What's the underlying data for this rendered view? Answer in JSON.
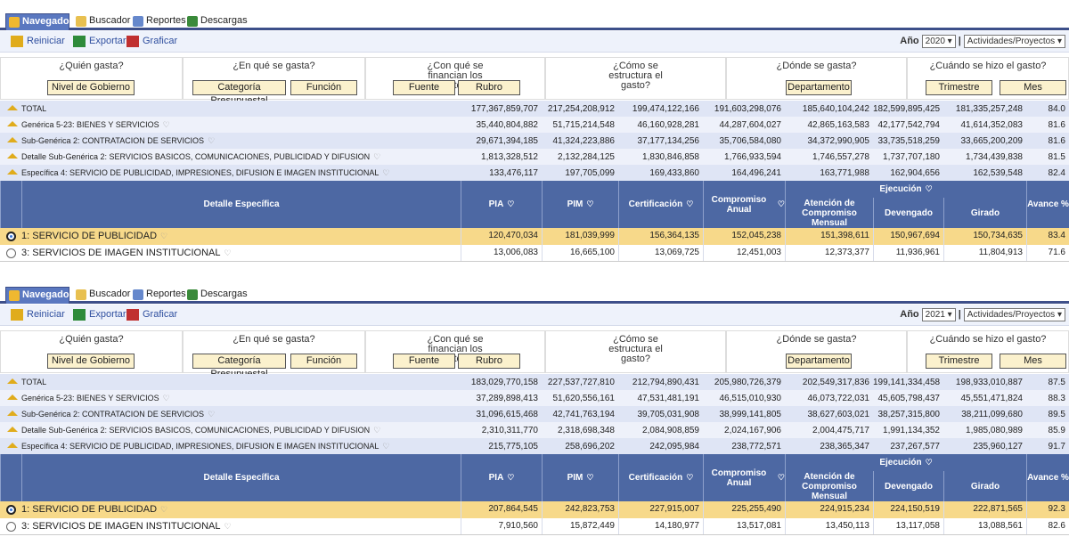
{
  "tabs": [
    {
      "label": "Navegador",
      "icon": "navigator-icon",
      "active": true
    },
    {
      "label": "Buscador",
      "icon": "search-icon"
    },
    {
      "label": "Reportes",
      "icon": "report-icon"
    },
    {
      "label": "Descargas",
      "icon": "download-icon"
    }
  ],
  "toolbar": {
    "reset": "Reiniciar",
    "export": "Exportar",
    "chart": "Graficar",
    "year_label": "Año",
    "view": "Actividades/Proyectos"
  },
  "questions": [
    {
      "title": "¿Quién gasta?",
      "buttons": [
        "Nivel de Gobierno"
      ]
    },
    {
      "title": "¿En qué se gasta?",
      "buttons": [
        "Categoría Presupuestal",
        "Función"
      ]
    },
    {
      "title": "¿Con qué se financian los gastos?",
      "buttons": [
        "Fuente",
        "Rubro"
      ]
    },
    {
      "title": "¿Cómo se estructura el gasto?",
      "buttons": []
    },
    {
      "title": "¿Dónde se gasta?",
      "buttons": [
        "Departamento"
      ]
    },
    {
      "title": "¿Cuándo se hizo el gasto?",
      "buttons": [
        "Trimestre",
        "Mes"
      ]
    }
  ],
  "columns": {
    "detail": "Detalle Específica",
    "pia": "PIA",
    "pim": "PIM",
    "cert": "Certificación",
    "comp": "Compromiso Anual",
    "ejec": "Ejecución",
    "aten": "Atención de Compromiso Mensual",
    "dev": "Devengado",
    "gir": "Girado",
    "avance": "Avance %"
  },
  "colors": {
    "header": "#4d68a3",
    "selected_row": "#f7d98a",
    "tab_active": "#5a78c0"
  },
  "panels": [
    {
      "year": "2020",
      "summary": [
        {
          "label": "TOTAL",
          "values": [
            "177,367,859,707",
            "217,254,208,912",
            "199,474,122,166",
            "191,603,298,076",
            "185,640,104,242",
            "182,599,895,425",
            "181,335,257,248",
            "84.0"
          ]
        },
        {
          "label": "Genérica 5-23: BIENES Y SERVICIOS",
          "values": [
            "35,440,804,882",
            "51,715,214,548",
            "46,160,928,281",
            "44,287,604,027",
            "42,865,163,583",
            "42,177,542,794",
            "41,614,352,083",
            "81.6"
          ]
        },
        {
          "label": "Sub-Genérica 2: CONTRATACION DE SERVICIOS",
          "values": [
            "29,671,394,185",
            "41,324,223,886",
            "37,177,134,256",
            "35,706,584,080",
            "34,372,990,905",
            "33,735,518,259",
            "33,665,200,209",
            "81.6"
          ]
        },
        {
          "label": "Detalle Sub-Genérica 2: SERVICIOS BASICOS, COMUNICACIONES, PUBLICIDAD Y DIFUSION",
          "values": [
            "1,813,328,512",
            "2,132,284,125",
            "1,830,846,858",
            "1,766,933,594",
            "1,746,557,278",
            "1,737,707,180",
            "1,734,439,838",
            "81.5"
          ]
        },
        {
          "label": "Específica 4: SERVICIO DE PUBLICIDAD, IMPRESIONES, DIFUSION E IMAGEN INSTITUCIONAL",
          "values": [
            "133,476,117",
            "197,705,099",
            "169,433,860",
            "164,496,241",
            "163,771,988",
            "162,904,656",
            "162,539,548",
            "82.4"
          ]
        }
      ],
      "rows": [
        {
          "label": "1: SERVICIO DE PUBLICIDAD",
          "selected": true,
          "values": [
            "120,470,034",
            "181,039,999",
            "156,364,135",
            "152,045,238",
            "151,398,611",
            "150,967,694",
            "150,734,635",
            "83.4"
          ]
        },
        {
          "label": "3: SERVICIOS DE IMAGEN INSTITUCIONAL",
          "selected": false,
          "values": [
            "13,006,083",
            "16,665,100",
            "13,069,725",
            "12,451,003",
            "12,373,377",
            "11,936,961",
            "11,804,913",
            "71.6"
          ]
        }
      ]
    },
    {
      "year": "2021",
      "summary": [
        {
          "label": "TOTAL",
          "values": [
            "183,029,770,158",
            "227,537,727,810",
            "212,794,890,431",
            "205,980,726,379",
            "202,549,317,836",
            "199,141,334,458",
            "198,933,010,887",
            "87.5"
          ]
        },
        {
          "label": "Genérica 5-23: BIENES Y SERVICIOS",
          "values": [
            "37,289,898,413",
            "51,620,556,161",
            "47,531,481,191",
            "46,515,010,930",
            "46,073,722,031",
            "45,605,798,437",
            "45,551,471,824",
            "88.3"
          ]
        },
        {
          "label": "Sub-Genérica 2: CONTRATACION DE SERVICIOS",
          "values": [
            "31,096,615,468",
            "42,741,763,194",
            "39,705,031,908",
            "38,999,141,805",
            "38,627,603,021",
            "38,257,315,800",
            "38,211,099,680",
            "89.5"
          ]
        },
        {
          "label": "Detalle Sub-Genérica 2: SERVICIOS BASICOS, COMUNICACIONES, PUBLICIDAD Y DIFUSION",
          "values": [
            "2,310,311,770",
            "2,318,698,348",
            "2,084,908,859",
            "2,024,167,906",
            "2,004,475,717",
            "1,991,134,352",
            "1,985,080,989",
            "85.9"
          ]
        },
        {
          "label": "Específica 4: SERVICIO DE PUBLICIDAD, IMPRESIONES, DIFUSION E IMAGEN INSTITUCIONAL",
          "values": [
            "215,775,105",
            "258,696,202",
            "242,095,984",
            "238,772,571",
            "238,365,347",
            "237,267,577",
            "235,960,127",
            "91.7"
          ]
        }
      ],
      "rows": [
        {
          "label": "1: SERVICIO DE PUBLICIDAD",
          "selected": true,
          "values": [
            "207,864,545",
            "242,823,753",
            "227,915,007",
            "225,255,490",
            "224,915,234",
            "224,150,519",
            "222,871,565",
            "92.3"
          ]
        },
        {
          "label": "3: SERVICIOS DE IMAGEN INSTITUCIONAL",
          "selected": false,
          "values": [
            "7,910,560",
            "15,872,449",
            "14,180,977",
            "13,517,081",
            "13,450,113",
            "13,117,058",
            "13,088,561",
            "82.6"
          ]
        }
      ]
    }
  ]
}
